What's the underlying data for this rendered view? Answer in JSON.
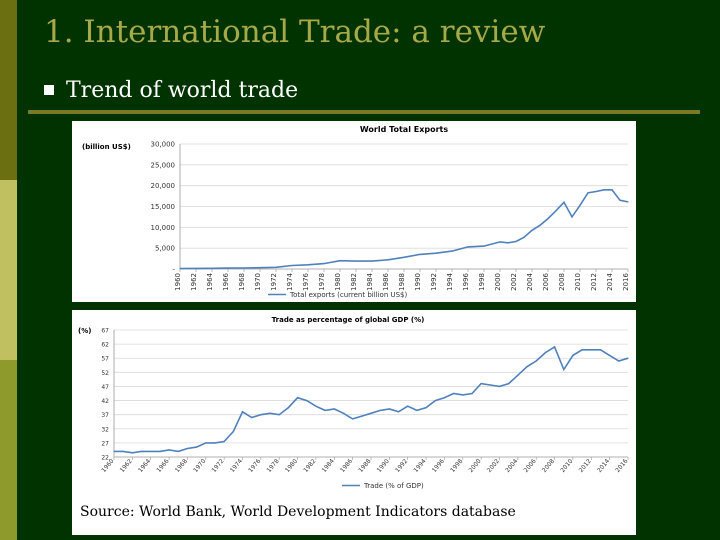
{
  "slide": {
    "title": "1. International Trade: a review",
    "bullet": "Trend of world trade",
    "source": "Source: World Bank, World Development Indicators database"
  },
  "colors": {
    "background": "#003300",
    "title": "#a7a84a",
    "line": "#4f81bd",
    "grid": "#d9d9d9"
  },
  "chart_data": [
    {
      "type": "line",
      "title": "World Total Exports",
      "ylabel": "(billion US$)",
      "legend": "Total exports (current billion US$)",
      "legend_position": "bottom",
      "grid": true,
      "ylim": [
        0,
        30000
      ],
      "yticks": [
        0,
        5000,
        10000,
        15000,
        20000,
        25000,
        30000
      ],
      "yticklabels": [
        "-",
        "5,000",
        "10,000",
        "15,000",
        "20,000",
        "25,000",
        "30,000"
      ],
      "xlim": [
        1960,
        2016
      ],
      "xticks": [
        1960,
        1962,
        1964,
        1966,
        1968,
        1970,
        1972,
        1974,
        1976,
        1978,
        1980,
        1982,
        1984,
        1986,
        1988,
        1990,
        1992,
        1994,
        1996,
        1998,
        2000,
        2002,
        2004,
        2006,
        2008,
        2010,
        2012,
        2014,
        2016
      ],
      "series": [
        {
          "name": "Total exports (current billion US$)",
          "x": [
            1960,
            1962,
            1964,
            1966,
            1968,
            1970,
            1972,
            1974,
            1976,
            1978,
            1980,
            1982,
            1984,
            1986,
            1988,
            1990,
            1992,
            1994,
            1996,
            1998,
            2000,
            2001,
            2002,
            2003,
            2004,
            2005,
            2006,
            2007,
            2008,
            2009,
            2010,
            2011,
            2012,
            2013,
            2014,
            2015,
            2016
          ],
          "y": [
            130,
            150,
            180,
            210,
            250,
            320,
            420,
            850,
            1000,
            1300,
            2000,
            1900,
            1900,
            2200,
            2800,
            3500,
            3800,
            4300,
            5300,
            5500,
            6500,
            6300,
            6600,
            7600,
            9300,
            10500,
            12100,
            14000,
            16000,
            12500,
            15300,
            18300,
            18600,
            19000,
            19000,
            16500,
            16100
          ]
        }
      ]
    },
    {
      "type": "line",
      "title": "Trade as percentage of global GDP (%)",
      "ylabel": "(%)",
      "legend": "Trade (% of GDP)",
      "legend_position": "bottom",
      "grid": true,
      "ylim": [
        22,
        67
      ],
      "yticks": [
        22,
        27,
        32,
        37,
        42,
        47,
        52,
        57,
        62,
        67
      ],
      "xlim": [
        1960,
        2016
      ],
      "xticks": [
        1960,
        1962,
        1964,
        1966,
        1968,
        1970,
        1972,
        1974,
        1976,
        1978,
        1980,
        1982,
        1984,
        1986,
        1988,
        1990,
        1992,
        1994,
        1996,
        1998,
        2000,
        2002,
        2004,
        2006,
        2008,
        2010,
        2012,
        2014,
        2016
      ],
      "series": [
        {
          "name": "Trade (% of GDP)",
          "x": [
            1960,
            1961,
            1962,
            1963,
            1964,
            1965,
            1966,
            1967,
            1968,
            1969,
            1970,
            1971,
            1972,
            1973,
            1974,
            1975,
            1976,
            1977,
            1978,
            1979,
            1980,
            1981,
            1982,
            1983,
            1984,
            1985,
            1986,
            1987,
            1988,
            1989,
            1990,
            1991,
            1992,
            1993,
            1994,
            1995,
            1996,
            1997,
            1998,
            1999,
            2000,
            2001,
            2002,
            2003,
            2004,
            2005,
            2006,
            2007,
            2008,
            2009,
            2010,
            2011,
            2012,
            2013,
            2014,
            2015,
            2016
          ],
          "y": [
            24,
            24,
            23.5,
            24,
            24,
            24,
            24.5,
            24,
            25,
            25.5,
            27,
            27,
            27.5,
            31,
            38,
            36,
            37,
            37.5,
            37,
            39.5,
            43,
            42,
            40,
            38.5,
            39,
            37.5,
            35.5,
            36.5,
            37.5,
            38.5,
            39,
            38,
            40,
            38.5,
            39.5,
            42,
            43,
            44.5,
            44,
            44.5,
            48,
            47.5,
            47,
            48,
            51,
            54,
            56,
            59,
            61,
            53,
            58,
            60,
            60,
            60,
            58,
            56,
            57
          ]
        }
      ]
    }
  ]
}
